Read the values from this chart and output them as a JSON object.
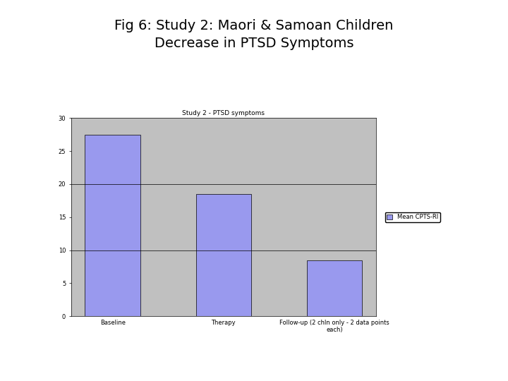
{
  "title_main": "Fig 6: Study 2: Maori & Samoan Children\nDecrease in PTSD Symptoms",
  "chart_title": "Study 2 - PTSD symptoms",
  "categories": [
    "Baseline",
    "Therapy",
    "Follow-up (2 chln only - 2 data points\neach)"
  ],
  "values": [
    27.5,
    18.5,
    8.5
  ],
  "bar_color": "#9999ee",
  "bar_edge_color": "#000000",
  "plot_bg_color": "#c0c0c0",
  "fig_bg_color": "#ffffff",
  "ylim": [
    0,
    30
  ],
  "yticks": [
    0,
    5,
    10,
    15,
    20,
    25,
    30
  ],
  "legend_label": "Mean CPTS-RI",
  "legend_marker_color": "#9999ee",
  "title_fontsize": 14,
  "chart_title_fontsize": 6.5,
  "tick_fontsize": 6,
  "legend_fontsize": 6
}
